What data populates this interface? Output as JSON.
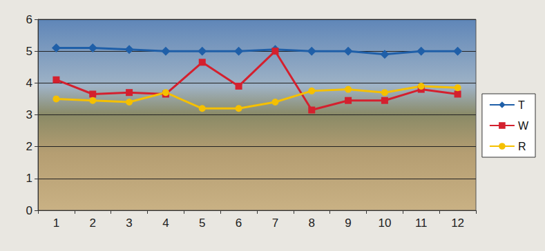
{
  "chart_data": {
    "type": "line",
    "categories": [
      "1",
      "2",
      "3",
      "4",
      "5",
      "6",
      "7",
      "8",
      "9",
      "10",
      "11",
      "12"
    ],
    "series": [
      {
        "name": "T",
        "color": "#1f5fa8",
        "marker": "diamond",
        "values": [
          5.1,
          5.1,
          5.05,
          5.0,
          5.0,
          5.0,
          5.05,
          5.0,
          5.0,
          4.9,
          5.0,
          5.0
        ]
      },
      {
        "name": "W",
        "color": "#d4202e",
        "marker": "square",
        "values": [
          4.1,
          3.65,
          3.7,
          3.65,
          4.65,
          3.9,
          5.0,
          3.15,
          3.45,
          3.45,
          3.8,
          3.65
        ]
      },
      {
        "name": "R",
        "color": "#f5c000",
        "marker": "circle",
        "values": [
          3.5,
          3.45,
          3.4,
          3.7,
          3.2,
          3.2,
          3.4,
          3.75,
          3.8,
          3.7,
          3.9,
          3.85
        ]
      }
    ],
    "ylim": [
      0,
      6
    ],
    "yticks": [
      0,
      1,
      2,
      3,
      4,
      5,
      6
    ],
    "grid": true,
    "legend": "right"
  }
}
